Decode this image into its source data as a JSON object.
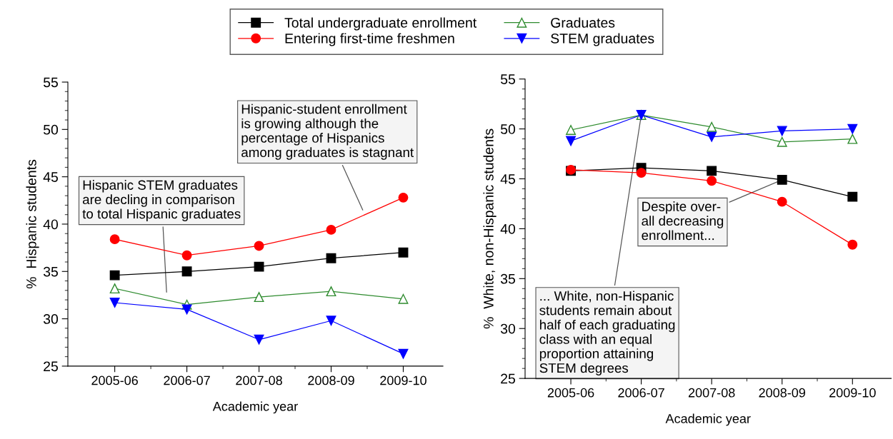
{
  "chart_data": [
    {
      "type": "line",
      "ylabel": "%  Hispanic students",
      "xlabel": "Academic year",
      "categories": [
        "2005-06",
        "2006-07",
        "2007-08",
        "2008-09",
        "2009-10"
      ],
      "ylim": [
        25,
        55
      ],
      "yticks": [
        25,
        30,
        35,
        40,
        45,
        50,
        55
      ],
      "legend": "top",
      "grid": false,
      "series": [
        {
          "name": "Total undergraduate enrollment",
          "color": "#000000",
          "marker": "square",
          "values": [
            34.6,
            35.0,
            35.5,
            36.4,
            37.0
          ]
        },
        {
          "name": "Entering first-time freshmen",
          "color": "#ff0000",
          "marker": "circle",
          "values": [
            38.4,
            36.7,
            37.7,
            39.4,
            42.8
          ]
        },
        {
          "name": "Graduates",
          "color": "#2e8b2e",
          "marker": "triangle",
          "values": [
            33.2,
            31.5,
            32.3,
            32.9,
            32.1
          ]
        },
        {
          "name": "STEM graduates",
          "color": "#0000ff",
          "marker": "triangle-down",
          "values": [
            31.7,
            31.0,
            27.8,
            29.8,
            26.3
          ]
        }
      ],
      "annotations": [
        "Hispanic STEM graduates\nare decling in comparison\nto total Hispanic graduates",
        "Hispanic-student enrollment\nis growing although the\npercentage of Hispanics\namong graduates is stagnant"
      ]
    },
    {
      "type": "line",
      "ylabel": "%  White, non-Hispanic students",
      "xlabel": "Academic year",
      "categories": [
        "2005-06",
        "2006-07",
        "2007-08",
        "2008-09",
        "2009-10"
      ],
      "ylim": [
        25,
        55
      ],
      "yticks": [
        25,
        30,
        35,
        40,
        45,
        50,
        55
      ],
      "grid": false,
      "series": [
        {
          "color": "#000000",
          "marker": "square",
          "values": [
            45.8,
            46.1,
            45.8,
            44.9,
            43.2
          ]
        },
        {
          "color": "#ff0000",
          "marker": "circle",
          "values": [
            45.9,
            45.6,
            44.8,
            42.7,
            38.4
          ]
        },
        {
          "color": "#2e8b2e",
          "marker": "triangle",
          "values": [
            49.9,
            51.4,
            50.2,
            48.7,
            49.0
          ]
        },
        {
          "color": "#0000ff",
          "marker": "triangle-down",
          "values": [
            48.8,
            51.4,
            49.2,
            49.8,
            50.0
          ]
        }
      ],
      "annotations": [
        {
          "text": "Despite over-\nall decreasing\nenrollment...",
          "x": "2008-09",
          "y": 44.9
        },
        {
          "text": "... White, non-Hispanic\nstudents remain about\nhalf of each graduating\nclass with an equal\nproportion attaining\nSTEM degrees",
          "x": "2006-07",
          "y": 51.4
        }
      ]
    }
  ]
}
